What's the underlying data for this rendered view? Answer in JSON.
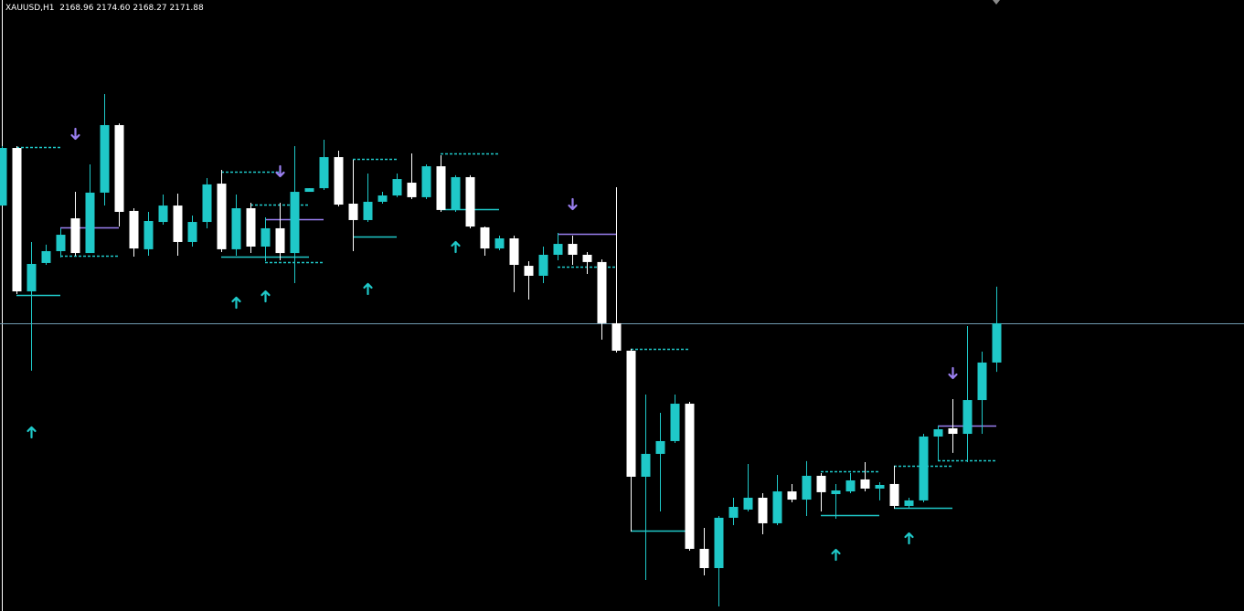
{
  "chart_data": {
    "type": "candlestick",
    "title": "XAUUSD,H1  2168.96 2174.60 2168.27 2171.88",
    "open": [
      2180.63,
      2184.91,
      2174.25,
      2176.36,
      2177.24,
      2179.68,
      2177.1,
      2181.59,
      2186.61,
      2180.23,
      2177.38,
      2179.41,
      2180.63,
      2177.92,
      2179.41,
      2182.26,
      2177.38,
      2180.43,
      2177.58,
      2178.94,
      2177.1,
      2181.65,
      2181.92,
      2184.23,
      2180.77,
      2179.55,
      2180.91,
      2181.38,
      2182.33,
      2181.25,
      2183.55,
      2180.3,
      2182.74,
      2179.01,
      2177.44,
      2178.19,
      2176.15,
      2175.41,
      2176.97,
      2177.78,
      2176.97,
      2176.43,
      2171.88,
      2169.84,
      2160.47,
      2162.17,
      2163.12,
      2165.9,
      2155.11,
      2153.68,
      2157.42,
      2158.03,
      2158.91,
      2157.01,
      2159.38,
      2158.77,
      2160.54,
      2159.18,
      2159.38,
      2160.27,
      2159.59,
      2159.93,
      2158.3,
      2158.71,
      2163.46,
      2164.07,
      2163.66,
      2166.17,
      2168.96
    ],
    "high": [
      2185.05,
      2185.05,
      2177.92,
      2177.72,
      2178.94,
      2181.65,
      2183.69,
      2188.92,
      2186.74,
      2180.43,
      2180.16,
      2181.45,
      2181.52,
      2179.89,
      2182.67,
      2183.28,
      2181.45,
      2180.84,
      2179.75,
      2180.84,
      2185.05,
      2181.92,
      2185.52,
      2184.71,
      2184.03,
      2183.01,
      2181.65,
      2183.01,
      2184.5,
      2183.69,
      2184.37,
      2182.88,
      2182.88,
      2179.07,
      2178.39,
      2178.39,
      2176.49,
      2177.58,
      2178.6,
      2178.39,
      2177.17,
      2176.63,
      2181.99,
      2169.98,
      2166.58,
      2165.22,
      2166.58,
      2166.04,
      2156.67,
      2157.55,
      2158.91,
      2161.42,
      2159.25,
      2160.61,
      2159.93,
      2161.63,
      2160.74,
      2159.93,
      2160.74,
      2161.56,
      2160.06,
      2161.29,
      2158.91,
      2163.66,
      2164.27,
      2166.24,
      2171.67,
      2169.77,
      2174.6
    ],
    "low": [
      2180.63,
      2174.05,
      2168.35,
      2176.22,
      2176.77,
      2176.9,
      2177.1,
      2180.63,
      2179.07,
      2176.83,
      2176.9,
      2179.21,
      2176.9,
      2177.58,
      2178.94,
      2177.17,
      2176.9,
      2177.1,
      2176.49,
      2176.56,
      2174.86,
      2181.65,
      2181.79,
      2180.57,
      2177.24,
      2179.41,
      2180.77,
      2181.25,
      2181.11,
      2181.11,
      2180.16,
      2180.16,
      2178.94,
      2176.9,
      2177.31,
      2174.19,
      2173.64,
      2174.86,
      2176.56,
      2176.22,
      2175.54,
      2170.66,
      2169.7,
      2156.4,
      2152.8,
      2157.89,
      2162.98,
      2154.97,
      2153.14,
      2150.83,
      2156.87,
      2157.89,
      2156.19,
      2156.87,
      2158.57,
      2157.55,
      2157.89,
      2157.35,
      2159.25,
      2159.38,
      2158.71,
      2158.1,
      2158.16,
      2158.57,
      2161.63,
      2162.24,
      2161.56,
      2163.66,
      2168.27
    ],
    "close": [
      2184.91,
      2174.25,
      2176.29,
      2177.24,
      2178.46,
      2177.1,
      2181.59,
      2186.61,
      2180.16,
      2177.44,
      2179.48,
      2180.63,
      2177.92,
      2179.41,
      2182.2,
      2177.38,
      2180.43,
      2177.58,
      2178.94,
      2177.1,
      2181.65,
      2181.92,
      2184.23,
      2180.7,
      2179.55,
      2180.91,
      2181.38,
      2182.6,
      2181.25,
      2183.55,
      2180.3,
      2182.74,
      2179.07,
      2177.44,
      2178.19,
      2176.22,
      2175.41,
      2176.97,
      2177.78,
      2176.97,
      2176.43,
      2171.88,
      2169.84,
      2160.47,
      2162.17,
      2163.12,
      2165.9,
      2155.11,
      2153.68,
      2157.42,
      2158.23,
      2158.91,
      2157.01,
      2159.38,
      2158.77,
      2160.54,
      2159.32,
      2159.45,
      2160.2,
      2159.59,
      2159.86,
      2158.3,
      2158.71,
      2163.46,
      2164.0,
      2163.66,
      2166.17,
      2168.96,
      2171.88
    ],
    "up_color": "#1fc8c8",
    "down_color": "#ffffff",
    "bid_line_color": "#6f9bb0",
    "ylim": [
      2150.49,
      2195.91
    ],
    "up_arrows": {
      "color": "#1fc8c8",
      "index": [
        2,
        16,
        18,
        25,
        31,
        57,
        62
      ],
      "values": [
        2163.8,
        2173.44,
        2173.91,
        2174.46,
        2177.58,
        2154.7,
        2155.92
      ]
    },
    "down_arrows": {
      "color": "#9a7ff0",
      "index": [
        5,
        19,
        39,
        65
      ],
      "values": [
        2185.93,
        2183.15,
        2180.7,
        2168.14
      ]
    },
    "levels": [
      {
        "from": 1,
        "to": 4,
        "value": 2184.98,
        "style": "dashed",
        "color": "#1fc8c8"
      },
      {
        "from": 1,
        "to": 4,
        "value": 2173.98,
        "style": "solid",
        "color": "#1fc8c8"
      },
      {
        "from": 4,
        "to": 8,
        "value": 2179.01,
        "style": "solid",
        "color": "#9a7ff0"
      },
      {
        "from": 4,
        "to": 8,
        "value": 2176.9,
        "style": "dashed",
        "color": "#1fc8c8"
      },
      {
        "from": 15,
        "to": 19,
        "value": 2183.15,
        "style": "dashed",
        "color": "#1fc8c8"
      },
      {
        "from": 15,
        "to": 21,
        "value": 2176.83,
        "style": "solid",
        "color": "#1fc8c8"
      },
      {
        "from": 17,
        "to": 21,
        "value": 2180.7,
        "style": "dashed",
        "color": "#1fc8c8"
      },
      {
        "from": 18,
        "to": 22,
        "value": 2179.62,
        "style": "solid",
        "color": "#9a7ff0"
      },
      {
        "from": 18,
        "to": 22,
        "value": 2176.43,
        "style": "dashed",
        "color": "#1fc8c8"
      },
      {
        "from": 24,
        "to": 27,
        "value": 2184.1,
        "style": "dashed",
        "color": "#1fc8c8"
      },
      {
        "from": 24,
        "to": 27,
        "value": 2178.33,
        "style": "solid",
        "color": "#1fc8c8"
      },
      {
        "from": 30,
        "to": 34,
        "value": 2184.5,
        "style": "dashed",
        "color": "#1fc8c8"
      },
      {
        "from": 30,
        "to": 34,
        "value": 2180.36,
        "style": "solid",
        "color": "#1fc8c8"
      },
      {
        "from": 38,
        "to": 42,
        "value": 2178.53,
        "style": "solid",
        "color": "#9a7ff0"
      },
      {
        "from": 38,
        "to": 42,
        "value": 2176.09,
        "style": "dashed",
        "color": "#1fc8c8"
      },
      {
        "from": 43,
        "to": 47,
        "value": 2169.98,
        "style": "dashed",
        "color": "#1fc8c8"
      },
      {
        "from": 43,
        "to": 47,
        "value": 2156.47,
        "style": "solid",
        "color": "#1fc8c8"
      },
      {
        "from": 56,
        "to": 60,
        "value": 2160.88,
        "style": "dashed",
        "color": "#1fc8c8"
      },
      {
        "from": 56,
        "to": 60,
        "value": 2157.62,
        "style": "solid",
        "color": "#1fc8c8"
      },
      {
        "from": 61,
        "to": 65,
        "value": 2161.29,
        "style": "dashed",
        "color": "#1fc8c8"
      },
      {
        "from": 61,
        "to": 65,
        "value": 2158.16,
        "style": "solid",
        "color": "#1fc8c8"
      },
      {
        "from": 64,
        "to": 68,
        "value": 2164.27,
        "style": "solid",
        "color": "#9a7ff0"
      },
      {
        "from": 64,
        "to": 68,
        "value": 2161.69,
        "style": "dashed",
        "color": "#1fc8c8"
      }
    ]
  }
}
